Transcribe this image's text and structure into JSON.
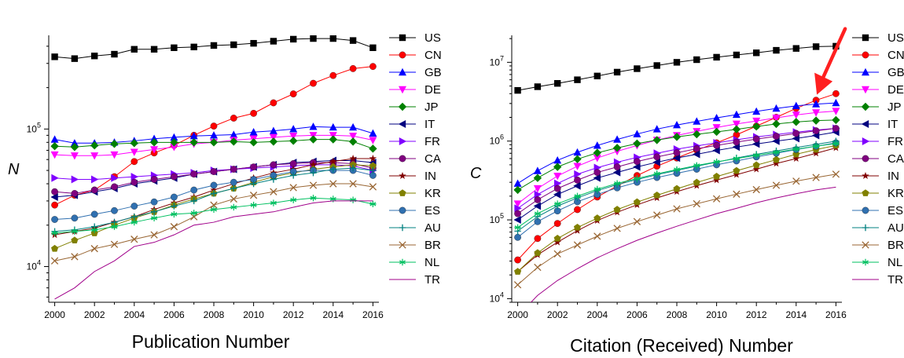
{
  "chart_data": [
    {
      "type": "line",
      "title": "Publication Number",
      "ylabel": "N",
      "y_scale": "log",
      "ylim": [
        5500,
        480000
      ],
      "xlim": [
        1999.7,
        2016.3
      ],
      "x_ticks": [
        "2000",
        "2002",
        "2004",
        "2006",
        "2008",
        "2010",
        "2012",
        "2014",
        "2016"
      ],
      "y_ticks": [
        {
          "value": 10000,
          "base": "10",
          "exp": "4"
        },
        {
          "value": 100000,
          "base": "10",
          "exp": "5"
        }
      ],
      "x": [
        2000,
        2001,
        2002,
        2003,
        2004,
        2005,
        2006,
        2007,
        2008,
        2009,
        2010,
        2011,
        2012,
        2013,
        2014,
        2015,
        2016
      ],
      "legend_position": "right",
      "series": [
        {
          "name": "US",
          "color": "#000000",
          "marker": "square",
          "values": [
            335000,
            325000,
            340000,
            350000,
            380000,
            380000,
            390000,
            395000,
            405000,
            410000,
            420000,
            435000,
            450000,
            455000,
            455000,
            440000,
            390000
          ]
        },
        {
          "name": "CN",
          "color": "#ff0000",
          "marker": "circle",
          "values": [
            28000,
            33000,
            36000,
            45000,
            58000,
            67000,
            76000,
            90000,
            105000,
            120000,
            130000,
            155000,
            180000,
            215000,
            245000,
            275000,
            285000
          ]
        },
        {
          "name": "GB",
          "color": "#0000ff",
          "marker": "triangle-up",
          "values": [
            84000,
            79000,
            79000,
            80000,
            82000,
            85000,
            87000,
            89000,
            90000,
            91000,
            95000,
            97000,
            100000,
            104000,
            103000,
            103000,
            93000
          ]
        },
        {
          "name": "DE",
          "color": "#ff00ff",
          "marker": "triangle-down",
          "values": [
            65000,
            64000,
            64000,
            65000,
            68000,
            71000,
            74000,
            78000,
            80000,
            83000,
            85000,
            87000,
            89000,
            90000,
            90000,
            89000,
            83000
          ]
        },
        {
          "name": "JP",
          "color": "#008000",
          "marker": "diamond",
          "values": [
            75000,
            74000,
            76000,
            78000,
            79000,
            80000,
            80000,
            80000,
            80000,
            81000,
            80000,
            81000,
            82000,
            84000,
            84000,
            81000,
            72000
          ]
        },
        {
          "name": "IT",
          "color": "#000080",
          "marker": "triangle-left",
          "values": [
            32000,
            33000,
            35000,
            37000,
            40000,
            42000,
            44000,
            47000,
            49000,
            51000,
            53000,
            55000,
            57000,
            58000,
            59000,
            59000,
            57000
          ]
        },
        {
          "name": "FR",
          "color": "#8000ff",
          "marker": "triangle-right",
          "values": [
            44000,
            43000,
            43000,
            44000,
            45000,
            46000,
            47000,
            48000,
            50000,
            51000,
            52000,
            53000,
            54000,
            55000,
            55000,
            54000,
            50000
          ]
        },
        {
          "name": "CA",
          "color": "#800080",
          "marker": "circle",
          "values": [
            35000,
            34000,
            36000,
            38000,
            41000,
            43000,
            45000,
            47000,
            49000,
            51000,
            53000,
            55000,
            56000,
            57000,
            57000,
            56000,
            52000
          ]
        },
        {
          "name": "IN",
          "color": "#800000",
          "marker": "star",
          "values": [
            17000,
            18000,
            19000,
            21000,
            23000,
            26000,
            29000,
            32000,
            36000,
            40000,
            44000,
            48000,
            51000,
            55000,
            58000,
            61000,
            61000
          ]
        },
        {
          "name": "KR",
          "color": "#808000",
          "marker": "pentagon",
          "values": [
            13500,
            15500,
            17500,
            20000,
            22500,
            25000,
            28000,
            31000,
            34000,
            37000,
            41000,
            45000,
            48000,
            51000,
            53000,
            55000,
            54000
          ]
        },
        {
          "name": "ES",
          "color": "#3070b0",
          "marker": "circle",
          "values": [
            22000,
            22500,
            24000,
            25500,
            27500,
            29500,
            32000,
            36000,
            39000,
            41000,
            43000,
            46000,
            49000,
            50000,
            50000,
            50000,
            46000
          ]
        },
        {
          "name": "AU",
          "color": "#008080",
          "marker": "plus",
          "values": [
            18000,
            18500,
            19500,
            21000,
            23000,
            25000,
            27500,
            30000,
            34000,
            37000,
            40000,
            43000,
            46000,
            48000,
            51000,
            52000,
            50000
          ]
        },
        {
          "name": "BR",
          "color": "#996633",
          "marker": "x",
          "values": [
            11000,
            11800,
            13500,
            14500,
            15800,
            17000,
            19500,
            23000,
            28000,
            31000,
            33000,
            35000,
            37500,
            39000,
            40000,
            40000,
            38000
          ]
        },
        {
          "name": "NL",
          "color": "#00c060",
          "marker": "asterisk",
          "values": [
            17500,
            18000,
            18500,
            19500,
            21000,
            22500,
            24000,
            24500,
            26000,
            27000,
            28000,
            29000,
            30500,
            31500,
            31000,
            30500,
            28500
          ]
        },
        {
          "name": "TR",
          "color": "#a0008a",
          "marker": "none",
          "values": [
            5800,
            7000,
            9200,
            11000,
            14000,
            15000,
            17000,
            20000,
            21000,
            23000,
            24000,
            25000,
            27000,
            29000,
            30000,
            30000,
            30000
          ]
        }
      ]
    },
    {
      "type": "line",
      "title": "Citation (Received) Number",
      "ylabel": "C",
      "y_scale": "log",
      "ylim": [
        9000,
        22000000
      ],
      "xlim": [
        1999.7,
        2016.3
      ],
      "x_ticks": [
        "2000",
        "2002",
        "2004",
        "2006",
        "2008",
        "2010",
        "2012",
        "2014",
        "2016"
      ],
      "y_ticks": [
        {
          "value": 10000,
          "base": "10",
          "exp": "4"
        },
        {
          "value": 100000,
          "base": "10",
          "exp": "5"
        },
        {
          "value": 1000000,
          "base": "10",
          "exp": "6"
        },
        {
          "value": 10000000,
          "base": "10",
          "exp": "7"
        }
      ],
      "x": [
        2000,
        2001,
        2002,
        2003,
        2004,
        2005,
        2006,
        2007,
        2008,
        2009,
        2010,
        2011,
        2012,
        2013,
        2014,
        2015,
        2016
      ],
      "legend_position": "right",
      "annotation": {
        "type": "arrow",
        "color": "#ff2020",
        "target_x": 2015,
        "target_series": "CN"
      },
      "series": [
        {
          "name": "US",
          "color": "#000000",
          "marker": "square",
          "values": [
            4400000,
            4900000,
            5400000,
            6000000,
            6700000,
            7500000,
            8300000,
            9100000,
            10000000,
            10800000,
            11600000,
            12400000,
            13200000,
            14200000,
            15000000,
            15800000,
            16000000
          ]
        },
        {
          "name": "CN",
          "color": "#ff0000",
          "marker": "circle",
          "values": [
            31000,
            58000,
            90000,
            135000,
            195000,
            270000,
            365000,
            480000,
            610000,
            770000,
            950000,
            1200000,
            1550000,
            2000000,
            2600000,
            3300000,
            4000000
          ]
        },
        {
          "name": "GB",
          "color": "#0000ff",
          "marker": "triangle-up",
          "values": [
            290000,
            420000,
            570000,
            720000,
            880000,
            1050000,
            1230000,
            1420000,
            1600000,
            1780000,
            1970000,
            2170000,
            2380000,
            2600000,
            2800000,
            2950000,
            3050000
          ]
        },
        {
          "name": "DE",
          "color": "#ff00ff",
          "marker": "triangle-down",
          "values": [
            160000,
            250000,
            360000,
            480000,
            610000,
            740000,
            880000,
            1030000,
            1180000,
            1330000,
            1490000,
            1650000,
            1800000,
            1970000,
            2150000,
            2300000,
            2400000
          ]
        },
        {
          "name": "JP",
          "color": "#008000",
          "marker": "diamond",
          "values": [
            240000,
            340000,
            470000,
            590000,
            710000,
            820000,
            930000,
            1030000,
            1130000,
            1220000,
            1310000,
            1410000,
            1530000,
            1650000,
            1750000,
            1820000,
            1850000
          ]
        },
        {
          "name": "IT",
          "color": "#000080",
          "marker": "triangle-left",
          "values": [
            100000,
            150000,
            210000,
            270000,
            340000,
            400000,
            470000,
            540000,
            610000,
            680000,
            760000,
            840000,
            920000,
            1000000,
            1080000,
            1180000,
            1300000
          ]
        },
        {
          "name": "FR",
          "color": "#8000ff",
          "marker": "triangle-right",
          "values": [
            140000,
            210000,
            290000,
            380000,
            460000,
            540000,
            620000,
            700000,
            790000,
            870000,
            950000,
            1040000,
            1130000,
            1210000,
            1300000,
            1380000,
            1450000
          ]
        },
        {
          "name": "CA",
          "color": "#800080",
          "marker": "circle",
          "values": [
            120000,
            180000,
            250000,
            320000,
            400000,
            470000,
            550000,
            630000,
            710000,
            800000,
            880000,
            970000,
            1060000,
            1150000,
            1250000,
            1350000,
            1450000
          ]
        },
        {
          "name": "IN",
          "color": "#800000",
          "marker": "star",
          "values": [
            22000,
            36000,
            52000,
            73000,
            98000,
            125000,
            155000,
            190000,
            228000,
            272000,
            320000,
            375000,
            440000,
            520000,
            600000,
            700000,
            820000
          ]
        },
        {
          "name": "KR",
          "color": "#808000",
          "marker": "pentagon",
          "values": [
            22000,
            38000,
            58000,
            80000,
            105000,
            135000,
            168000,
            205000,
            248000,
            298000,
            355000,
            420000,
            495000,
            580000,
            680000,
            780000,
            880000
          ]
        },
        {
          "name": "ES",
          "color": "#3070b0",
          "marker": "circle",
          "values": [
            60000,
            95000,
            130000,
            170000,
            210000,
            255000,
            300000,
            345000,
            390000,
            440000,
            500000,
            560000,
            630000,
            700000,
            780000,
            860000,
            950000
          ]
        },
        {
          "name": "AU",
          "color": "#008080",
          "marker": "plus",
          "values": [
            72000,
            110000,
            150000,
            190000,
            235000,
            280000,
            325000,
            375000,
            425000,
            480000,
            540000,
            610000,
            680000,
            750000,
            830000,
            910000,
            1000000
          ]
        },
        {
          "name": "BR",
          "color": "#996633",
          "marker": "x",
          "values": [
            15000,
            25000,
            37000,
            48000,
            62000,
            78000,
            95000,
            115000,
            138000,
            160000,
            185000,
            212000,
            242000,
            275000,
            310000,
            345000,
            380000
          ]
        },
        {
          "name": "NL",
          "color": "#00c060",
          "marker": "asterisk",
          "values": [
            80000,
            120000,
            160000,
            200000,
            245000,
            290000,
            335000,
            385000,
            435000,
            490000,
            545000,
            600000,
            660000,
            720000,
            790000,
            860000,
            930000
          ]
        },
        {
          "name": "TR",
          "color": "#a0008a",
          "marker": "none",
          "values": [
            6000,
            11000,
            17000,
            24000,
            33000,
            43000,
            55000,
            68000,
            83000,
            100000,
            120000,
            140000,
            165000,
            190000,
            215000,
            240000,
            260000
          ]
        }
      ]
    }
  ]
}
